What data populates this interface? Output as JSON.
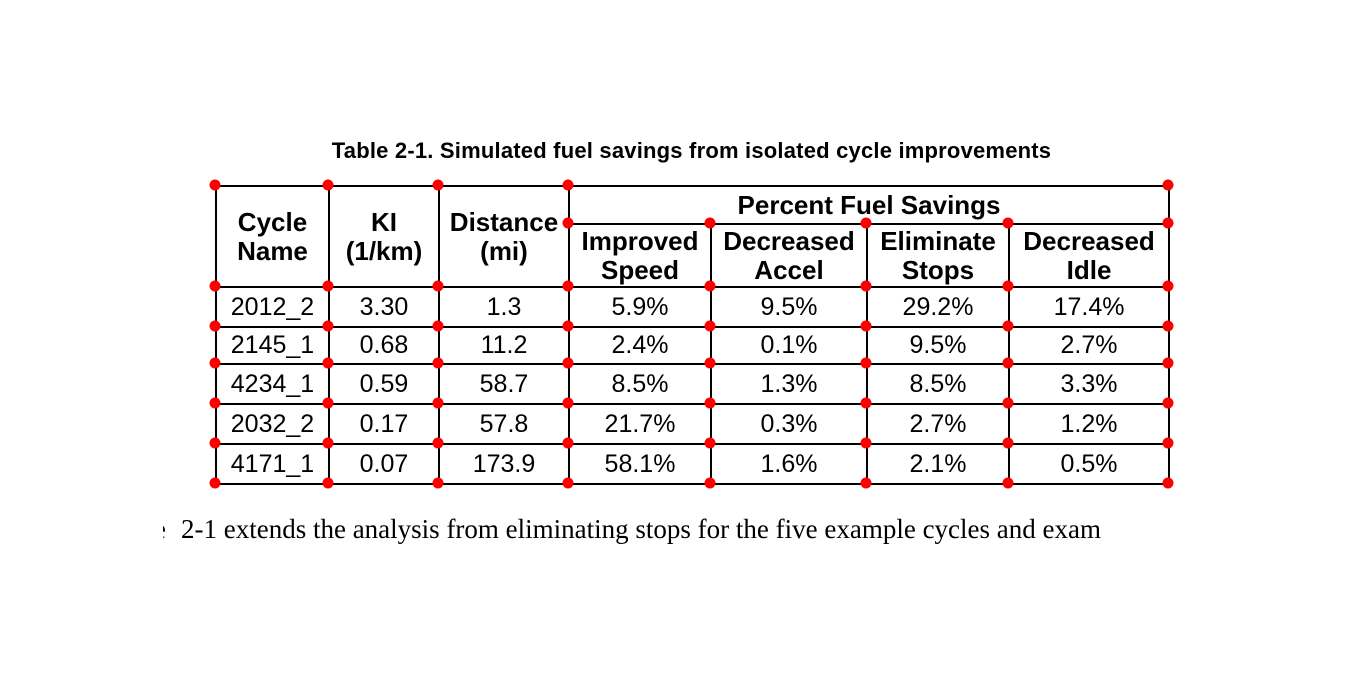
{
  "page": {
    "background": "#ffffff",
    "text_color": "#000000"
  },
  "title": "Table 2-1. Simulated fuel savings from isolated cycle improvements",
  "table": {
    "header": {
      "cycle_name": "Cycle Name",
      "ki": "KI (1/km)",
      "distance": "Distance (mi)",
      "group": "Percent Fuel Savings",
      "sub": [
        "Improved Speed",
        "Decreased Accel",
        "Eliminate Stops",
        "Decreased Idle"
      ]
    },
    "rows": [
      [
        "2012_2",
        "3.30",
        "1.3",
        "5.9%",
        "9.5%",
        "29.2%",
        "17.4%"
      ],
      [
        "2145_1",
        "0.68",
        "11.2",
        "2.4%",
        "0.1%",
        "9.5%",
        "2.7%"
      ],
      [
        "4234_1",
        "0.59",
        "58.7",
        "8.5%",
        "1.3%",
        "8.5%",
        "3.3%"
      ],
      [
        "2032_2",
        "0.17",
        "57.8",
        "21.7%",
        "0.3%",
        "2.7%",
        "1.2%"
      ],
      [
        "4171_1",
        "0.07",
        "173.9",
        "58.1%",
        "1.6%",
        "2.1%",
        "0.5%"
      ]
    ]
  },
  "body_text": {
    "left_fragment": "e",
    "sentence": "2-1 extends the analysis from eliminating stops for the five example cycles and exam"
  },
  "markers": {
    "color": "#ff0000",
    "diameter": 11,
    "x_lines": [
      215,
      328,
      438,
      568,
      710,
      866,
      1008,
      1168
    ],
    "y_lines": [
      185,
      223,
      286,
      326,
      363,
      403,
      443,
      483
    ],
    "dots": [
      {
        "row": 0,
        "cols": [
          0,
          1,
          2,
          3,
          7
        ]
      },
      {
        "row": 1,
        "cols": [
          3,
          4,
          5,
          6,
          7
        ]
      },
      {
        "row": 2,
        "cols": [
          0,
          1,
          2,
          3,
          4,
          5,
          6,
          7
        ]
      },
      {
        "row": 3,
        "cols": [
          0,
          1,
          2,
          3,
          4,
          5,
          6,
          7
        ]
      },
      {
        "row": 4,
        "cols": [
          0,
          1,
          2,
          3,
          4,
          5,
          6,
          7
        ]
      },
      {
        "row": 5,
        "cols": [
          0,
          1,
          2,
          3,
          4,
          5,
          6,
          7
        ]
      },
      {
        "row": 6,
        "cols": [
          0,
          1,
          2,
          3,
          4,
          5,
          6,
          7
        ]
      },
      {
        "row": 7,
        "cols": [
          0,
          1,
          2,
          3,
          4,
          5,
          6,
          7
        ]
      }
    ]
  }
}
